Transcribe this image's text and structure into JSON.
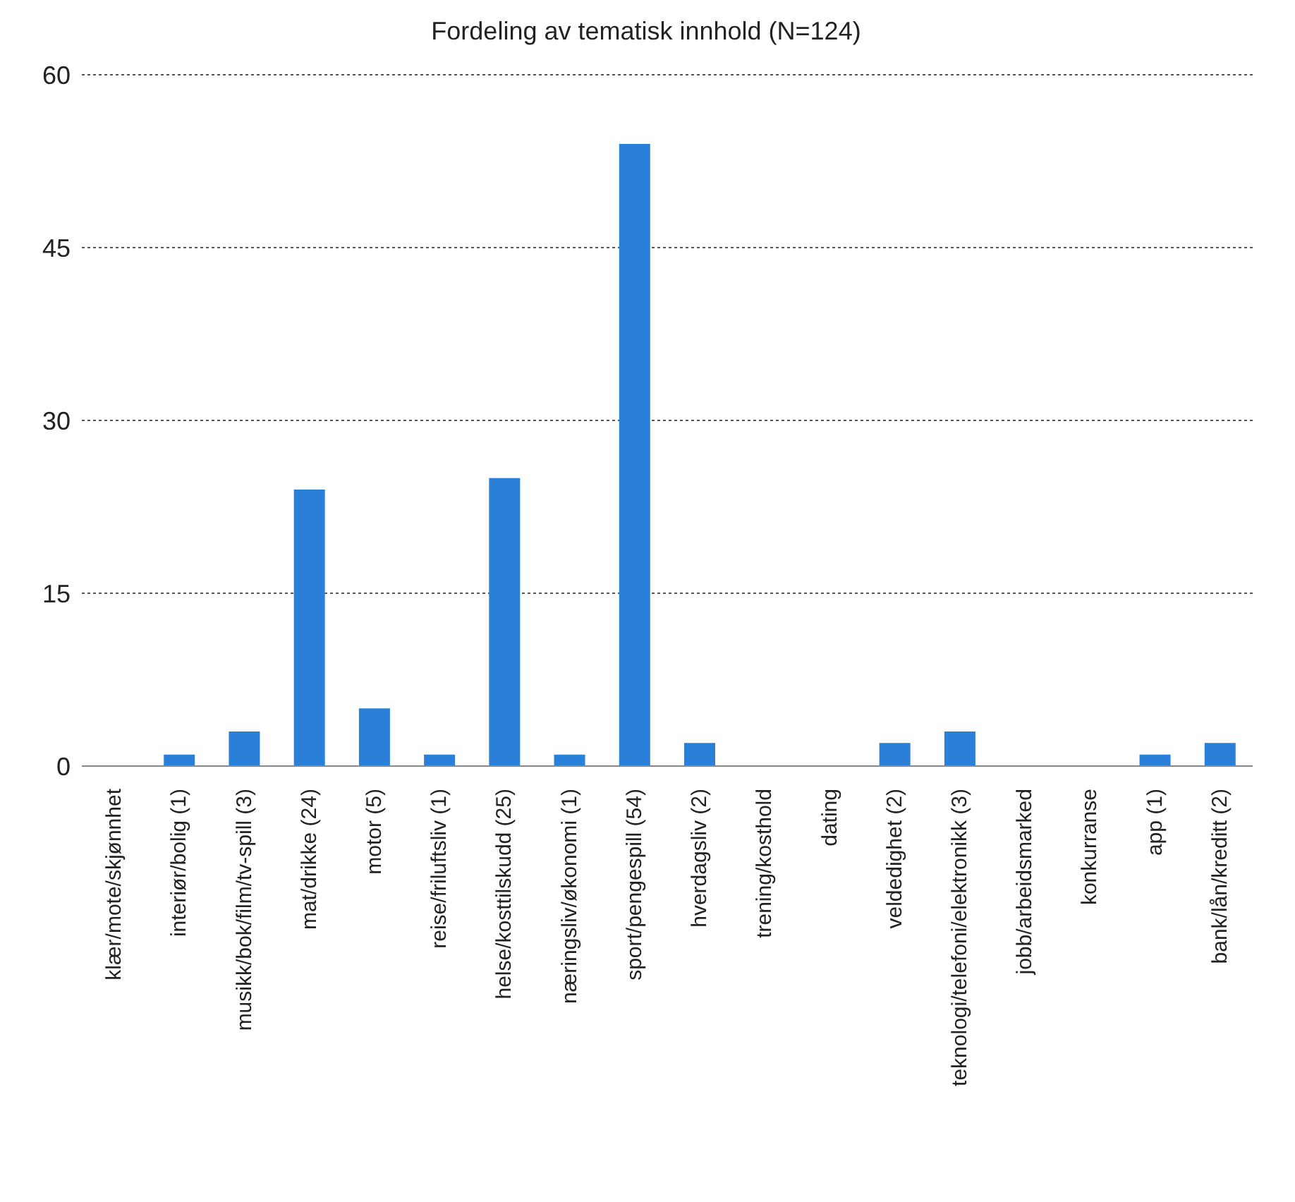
{
  "chart_data": {
    "type": "bar",
    "title": "Fordeling av tematisk innhold (N=124)",
    "categories": [
      "klær/mote/skjønnhet",
      "interiør/bolig (1)",
      "musikk/bok/film/tv-spill (3)",
      "mat/drikke (24)",
      "motor (5)",
      "reise/friluftsliv (1)",
      "helse/kosttilskudd (25)",
      "næringsliv/økonomi (1)",
      "sport/pengespill (54)",
      "hverdagsliv (2)",
      "trening/kosthold",
      "dating",
      "veldedighet (2)",
      "teknologi/telefoni/elektronikk (3)",
      "jobb/arbeidsmarked",
      "konkurranse",
      "app (1)",
      "bank/lån/kreditt (2)"
    ],
    "values": [
      0,
      1,
      3,
      24,
      5,
      1,
      25,
      1,
      54,
      2,
      0,
      0,
      2,
      3,
      0,
      0,
      1,
      2
    ],
    "color": "#2a7fd8",
    "ylim": [
      0,
      60
    ],
    "yticks": [
      0,
      15,
      30,
      45,
      60
    ],
    "grid": "y"
  }
}
